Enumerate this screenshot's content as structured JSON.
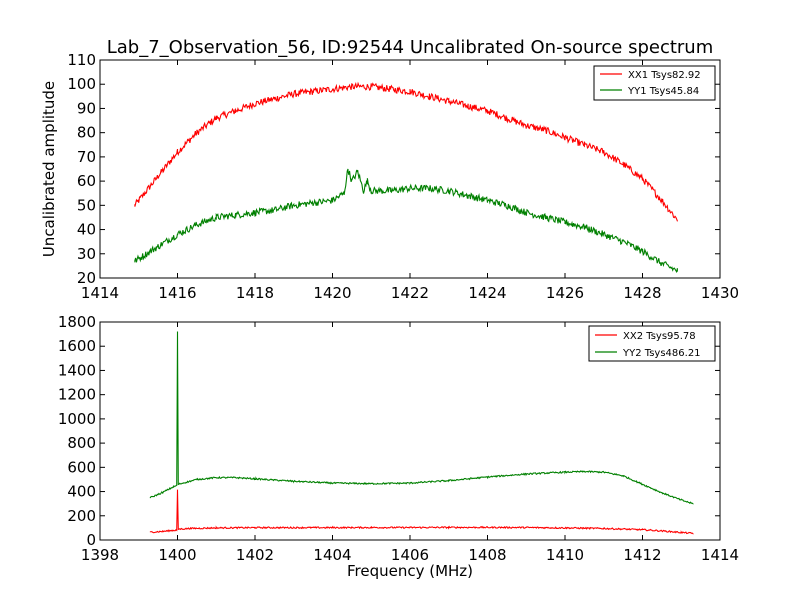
{
  "chart_data": [
    {
      "type": "line",
      "title": "Lab_7_Observation_56, ID:92544 Uncalibrated On-source spectrum",
      "xlabel": "",
      "ylabel": "Uncalibrated amplitude",
      "xlim": [
        1414,
        1430
      ],
      "ylim": [
        20,
        110
      ],
      "xticks": [
        1414,
        1416,
        1418,
        1420,
        1422,
        1424,
        1426,
        1428,
        1430
      ],
      "yticks": [
        20,
        30,
        40,
        50,
        60,
        70,
        80,
        90,
        100,
        110
      ],
      "legend_position": "top-right",
      "grid": false,
      "series": [
        {
          "name": "XX1 Tsys82.92",
          "color": "#ff0000",
          "x": [
            1414.9,
            1415.5,
            1416.0,
            1416.5,
            1417.0,
            1417.5,
            1418.0,
            1418.5,
            1419.0,
            1419.5,
            1420.0,
            1420.5,
            1421.0,
            1421.5,
            1422.0,
            1422.5,
            1423.0,
            1423.5,
            1424.0,
            1424.5,
            1425.0,
            1425.5,
            1426.0,
            1426.5,
            1427.0,
            1427.5,
            1428.0,
            1428.5,
            1428.9
          ],
          "values": [
            50,
            62,
            72,
            80,
            86,
            89,
            92,
            94,
            96,
            97,
            98,
            99,
            99,
            98,
            97,
            95,
            93,
            91,
            89,
            86,
            83,
            81,
            78,
            75,
            72,
            67,
            61,
            52,
            44
          ]
        },
        {
          "name": "YY1 Tsys45.84",
          "color": "#008000",
          "x": [
            1414.9,
            1415.5,
            1416.0,
            1416.5,
            1417.0,
            1417.5,
            1418.0,
            1418.5,
            1419.0,
            1419.5,
            1420.0,
            1420.3,
            1420.4,
            1420.5,
            1420.65,
            1420.8,
            1420.9,
            1421.0,
            1421.5,
            1422.0,
            1422.5,
            1423.0,
            1423.5,
            1424.0,
            1424.5,
            1425.0,
            1425.5,
            1426.0,
            1426.5,
            1427.0,
            1427.5,
            1428.0,
            1428.5,
            1428.9
          ],
          "values": [
            27,
            33,
            38,
            42,
            45,
            46,
            47,
            48,
            50,
            51,
            52,
            55,
            65,
            60,
            64,
            56,
            60,
            56,
            56,
            57,
            57,
            56,
            54,
            52,
            50,
            47,
            45,
            43,
            41,
            38,
            35,
            31,
            26,
            23
          ]
        }
      ]
    },
    {
      "type": "line",
      "title": "",
      "xlabel": "Frequency (MHz)",
      "ylabel": "",
      "xlim": [
        1398,
        1414
      ],
      "ylim": [
        0,
        1800
      ],
      "xticks": [
        1398,
        1400,
        1402,
        1404,
        1406,
        1408,
        1410,
        1412,
        1414
      ],
      "yticks": [
        0,
        200,
        400,
        600,
        800,
        1000,
        1200,
        1400,
        1600,
        1800
      ],
      "legend_position": "top-right",
      "grid": false,
      "series": [
        {
          "name": "XX2 Tsys95.78",
          "color": "#ff0000",
          "x": [
            1399.3,
            1399.6,
            1399.9,
            1399.98,
            1400.0,
            1400.02,
            1400.3,
            1401.0,
            1402.0,
            1403.0,
            1404.0,
            1405.0,
            1406.0,
            1407.0,
            1408.0,
            1409.0,
            1410.0,
            1411.0,
            1412.0,
            1412.5,
            1413.0,
            1413.3
          ],
          "values": [
            65,
            70,
            80,
            82,
            410,
            90,
            95,
            100,
            102,
            102,
            102,
            103,
            103,
            104,
            104,
            103,
            100,
            95,
            85,
            75,
            62,
            55
          ]
        },
        {
          "name": "YY2 Tsys486.21",
          "color": "#008000",
          "x": [
            1399.3,
            1399.6,
            1399.9,
            1399.98,
            1400.0,
            1400.02,
            1400.5,
            1401.0,
            1401.5,
            1402.0,
            1403.0,
            1404.0,
            1405.0,
            1406.0,
            1407.0,
            1408.0,
            1409.0,
            1410.0,
            1410.5,
            1411.0,
            1411.5,
            1412.0,
            1412.5,
            1413.0,
            1413.3
          ],
          "values": [
            350,
            390,
            440,
            450,
            1720,
            460,
            500,
            515,
            515,
            505,
            485,
            470,
            465,
            470,
            490,
            520,
            545,
            560,
            565,
            560,
            530,
            460,
            390,
            330,
            300
          ]
        }
      ]
    }
  ]
}
